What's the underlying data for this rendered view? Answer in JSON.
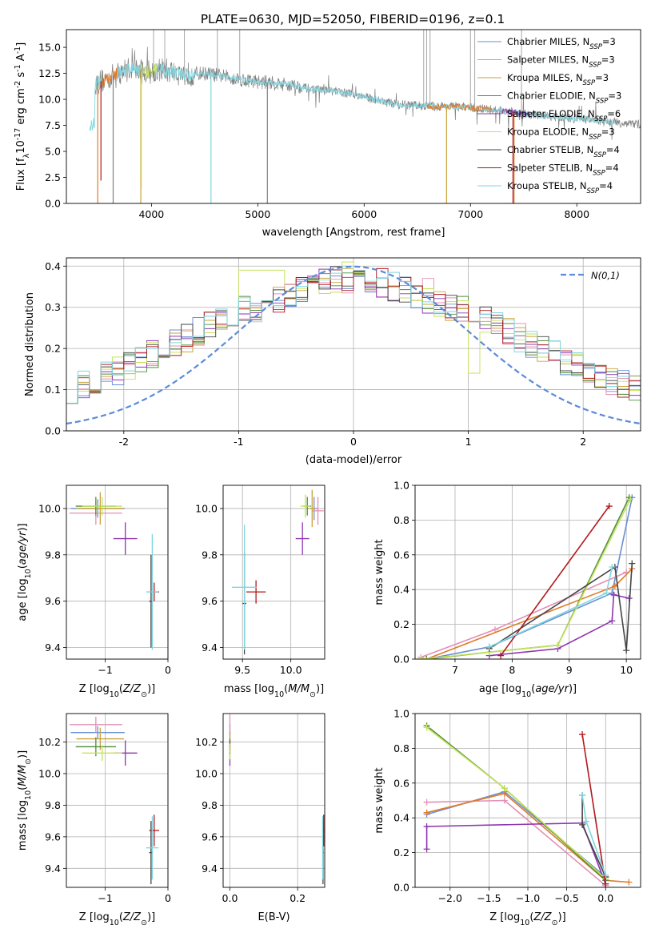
{
  "figure": {
    "title": "PLATE=0630, MJD=52050, FIBERID=0196, z=0.1"
  },
  "models": [
    {
      "name": "Chabrier MILES, N",
      "nssp": "3",
      "color": "#6a8fd6"
    },
    {
      "name": "Salpeter MILES, N",
      "nssp": "3",
      "color": "#e38fb6"
    },
    {
      "name": "Kroupa MILES, N",
      "nssp": "3",
      "color": "#c9a23a"
    },
    {
      "name": "Chabrier ELODIE, N",
      "nssp": "3",
      "color": "#4e8f3a"
    },
    {
      "name": "Salpeter ELODIE, N",
      "nssp": "6",
      "color": "#8e35b0"
    },
    {
      "name": "Kroupa ELODIE, N",
      "nssp": "3",
      "color": "#c5e25a"
    },
    {
      "name": "Chabrier STELIB, N",
      "nssp": "4",
      "color": "#454545"
    },
    {
      "name": "Salpeter STELIB, N",
      "nssp": "4",
      "color": "#b2181b"
    },
    {
      "name": "Kroupa STELIB, N",
      "nssp": "4",
      "color": "#7fd6e0"
    }
  ],
  "legend_sub": "SSP",
  "chart_data": [
    {
      "id": "spectrum",
      "type": "line",
      "xlabel": "wavelength [Angstrom, rest frame]",
      "ylabel_main": "Flux [f",
      "ylabel_tail": "10",
      "ylabel_exp": "-17",
      "ylabel_units": " erg cm",
      "ylabel_units_exp1": "-2",
      "ylabel_units_mid": " s",
      "ylabel_units_exp2": "-1",
      "ylabel_units_end": " A",
      "ylabel_units_exp3": "-1",
      "ylabel_close": "]",
      "xlim": [
        3200,
        8600
      ],
      "ylim": [
        0,
        16.7
      ],
      "xticks": [
        4000,
        5000,
        6000,
        7000,
        8000
      ],
      "yticks": [
        0.0,
        2.5,
        5.0,
        7.5,
        10.0,
        12.5,
        15.0
      ],
      "ytick_labels": [
        "0.0",
        "2.5",
        "5.0",
        "7.5",
        "10.0",
        "12.5",
        "15.0"
      ],
      "data_color": "#808080",
      "model_color": "#7fd6e0",
      "data_range": [
        3470,
        8600
      ],
      "continuum": [
        [
          3470,
          11.5
        ],
        [
          3650,
          12.3
        ],
        [
          3800,
          13.0
        ],
        [
          3950,
          12.6
        ],
        [
          4100,
          12.9
        ],
        [
          4300,
          12.4
        ],
        [
          4500,
          12.5
        ],
        [
          4700,
          12.2
        ],
        [
          4900,
          11.8
        ],
        [
          5100,
          11.6
        ],
        [
          5300,
          11.4
        ],
        [
          5500,
          11.0
        ],
        [
          5700,
          10.8
        ],
        [
          5900,
          10.5
        ],
        [
          6100,
          10.0
        ],
        [
          6300,
          9.5
        ],
        [
          6500,
          9.4
        ],
        [
          6700,
          9.3
        ],
        [
          6900,
          9.3
        ],
        [
          7100,
          9.1
        ],
        [
          7300,
          8.9
        ],
        [
          7500,
          8.6
        ],
        [
          7700,
          8.4
        ],
        [
          7900,
          8.2
        ],
        [
          8100,
          8.1
        ],
        [
          8300,
          7.8
        ],
        [
          8600,
          7.6
        ]
      ],
      "model_range": [
        3420,
        8370
      ],
      "model_segments": [
        {
          "range": [
            3420,
            3520
          ],
          "color": "#7fd6e0"
        },
        {
          "range": [
            3520,
            3680
          ],
          "color": "#e07b2a"
        },
        {
          "range": [
            3680,
            3900
          ],
          "color": "#7fd6e0"
        },
        {
          "range": [
            3900,
            4050
          ],
          "color": "#c5e25a"
        },
        {
          "range": [
            4050,
            8370
          ],
          "color": "#7fd6e0"
        },
        {
          "range": [
            6600,
            7200
          ],
          "color": "#e07b2a"
        },
        {
          "range": [
            7300,
            7560
          ],
          "color": "#8e35b0"
        }
      ],
      "absorption_spikes": [
        {
          "x": 3495,
          "y": 0.0,
          "color": "#e07b2a"
        },
        {
          "x": 3525,
          "y": 2.2,
          "color": "#b2181b"
        },
        {
          "x": 3640,
          "y": 0.0,
          "color": "#808080"
        },
        {
          "x": 3900,
          "y": 0.0,
          "color": "#c9a23a"
        },
        {
          "x": 3905,
          "y": 1.5,
          "color": "#c5e25a"
        },
        {
          "x": 4560,
          "y": 0.0,
          "color": "#7fd6e0"
        },
        {
          "x": 5090,
          "y": 0.0,
          "color": "#808080"
        },
        {
          "x": 6775,
          "y": 0.0,
          "color": "#c9a23a"
        },
        {
          "x": 7400,
          "y": 0.0,
          "color": "#b2181b"
        },
        {
          "x": 7410,
          "y": 0.0,
          "color": "#e07b2a"
        }
      ],
      "emission_spikes": [
        {
          "x": 4020,
          "y": 16.7
        },
        {
          "x": 4125,
          "y": 16.7
        },
        {
          "x": 4310,
          "y": 16.7
        },
        {
          "x": 4620,
          "y": 16.7
        },
        {
          "x": 4830,
          "y": 16.7
        },
        {
          "x": 6560,
          "y": 16.7
        },
        {
          "x": 6588,
          "y": 16.7
        },
        {
          "x": 6620,
          "y": 16.7
        },
        {
          "x": 7000,
          "y": 16.7
        },
        {
          "x": 7040,
          "y": 16.7
        },
        {
          "x": 7480,
          "y": 16.7
        }
      ]
    },
    {
      "id": "residuals",
      "type": "histogram",
      "xlabel": "(data-model)/error",
      "ylabel": "Normed distribution",
      "xlim": [
        -2.5,
        2.5
      ],
      "ylim": [
        0.0,
        0.42
      ],
      "xticks": [
        -2,
        -1,
        0,
        1,
        2
      ],
      "yticks": [
        0.0,
        0.1,
        0.2,
        0.3,
        0.4
      ],
      "ytick_labels": [
        "0.0",
        "0.1",
        "0.2",
        "0.3",
        "0.4"
      ],
      "bin_edges_start": -2.5,
      "bin_width": 0.1,
      "n_bins": 50,
      "gaussian_label": "N(0,1)",
      "gaussian_color": "#5b8bd8"
    },
    {
      "id": "age-Z",
      "type": "errorbar",
      "xlabel": "Z [log10(Z/Z⊙)]",
      "ylabel": "age [log10(age/yr)]",
      "xlim": [
        -1.62,
        0.0
      ],
      "ylim": [
        9.35,
        10.1
      ],
      "xticks": [
        -1,
        0
      ],
      "xtick_labels": [
        "−1",
        "0"
      ],
      "yticks": [
        9.4,
        9.6,
        9.8,
        10.0
      ],
      "ytick_labels": [
        "9.4",
        "9.6",
        "9.8",
        "10.0"
      ],
      "points": [
        {
          "model": 0,
          "x": -1.12,
          "y": 10.0,
          "xerr": 0.43,
          "yerr": 0.04
        },
        {
          "model": 1,
          "x": -1.15,
          "y": 9.98,
          "xerr": 0.42,
          "yerr": 0.05
        },
        {
          "model": 2,
          "x": -1.08,
          "y": 10.0,
          "xerr": 0.38,
          "yerr": 0.07
        },
        {
          "model": 3,
          "x": -1.15,
          "y": 10.01,
          "xerr": 0.32,
          "yerr": 0.04
        },
        {
          "model": 4,
          "x": -0.68,
          "y": 9.87,
          "xerr": 0.19,
          "yerr": 0.07
        },
        {
          "model": 5,
          "x": -1.05,
          "y": 10.01,
          "xerr": 0.32,
          "yerr": 0.04
        },
        {
          "model": 6,
          "x": -0.27,
          "y": 9.6,
          "xerr": 0.03,
          "yerr": 0.2
        },
        {
          "model": 7,
          "x": -0.22,
          "y": 9.64,
          "xerr": 0.08,
          "yerr": 0.04
        },
        {
          "model": 8,
          "x": -0.25,
          "y": 9.64,
          "xerr": 0.1,
          "yerr": 0.25
        }
      ]
    },
    {
      "id": "age-mass",
      "type": "errorbar",
      "xlabel": "mass [log10(M/M⊙)]",
      "xlim": [
        9.3,
        10.35
      ],
      "ylim": [
        9.35,
        10.1
      ],
      "xticks": [
        9.5,
        10.0
      ],
      "xtick_labels": [
        "9.5",
        "10.0"
      ],
      "yticks": [
        9.4,
        9.6,
        9.8,
        10.0
      ],
      "ytick_labels": [
        "9.4",
        "9.6",
        "9.8",
        "10.0"
      ],
      "points": [
        {
          "model": 0,
          "x": 10.24,
          "y": 10.0,
          "xerr": 0.04,
          "yerr": 0.05
        },
        {
          "model": 1,
          "x": 10.28,
          "y": 9.99,
          "xerr": 0.06,
          "yerr": 0.06
        },
        {
          "model": 2,
          "x": 10.22,
          "y": 10.0,
          "xerr": 0.04,
          "yerr": 0.08
        },
        {
          "model": 3,
          "x": 10.17,
          "y": 10.01,
          "xerr": 0.04,
          "yerr": 0.04
        },
        {
          "model": 4,
          "x": 10.12,
          "y": 9.87,
          "xerr": 0.07,
          "yerr": 0.07
        },
        {
          "model": 5,
          "x": 10.15,
          "y": 10.01,
          "xerr": 0.05,
          "yerr": 0.05
        },
        {
          "model": 6,
          "x": 9.52,
          "y": 9.59,
          "xerr": 0.02,
          "yerr": 0.22
        },
        {
          "model": 7,
          "x": 9.64,
          "y": 9.64,
          "xerr": 0.1,
          "yerr": 0.05
        },
        {
          "model": 8,
          "x": 9.52,
          "y": 9.66,
          "xerr": 0.13,
          "yerr": 0.27
        }
      ]
    },
    {
      "id": "mw-age",
      "type": "line",
      "xlabel": "age [log10(age/yr)]",
      "ylabel": "mass weight",
      "xlim": [
        6.3,
        10.25
      ],
      "ylim": [
        0.0,
        1.0
      ],
      "xticks": [
        7,
        8,
        9,
        10
      ],
      "xtick_labels": [
        "7",
        "8",
        "9",
        "10"
      ],
      "yticks": [
        0.0,
        0.2,
        0.4,
        0.6,
        0.8,
        1.0
      ],
      "ytick_labels": [
        "0.0",
        "0.2",
        "0.4",
        "0.6",
        "0.8",
        "1.0"
      ],
      "series": [
        {
          "model": 0,
          "x": [
            6.5,
            7.6,
            9.75,
            10.1
          ],
          "y": [
            0.0,
            0.07,
            0.38,
            0.93
          ]
        },
        {
          "model": 1,
          "x": [
            6.4,
            7.7,
            10.0
          ],
          "y": [
            0.01,
            0.17,
            0.5
          ]
        },
        {
          "model": 2,
          "x": [
            6.5,
            9.8,
            10.1
          ],
          "y": [
            0.0,
            0.42,
            0.52
          ]
        },
        {
          "model": 3,
          "x": [
            6.5,
            7.6,
            8.8,
            10.05
          ],
          "y": [
            0.0,
            0.04,
            0.08,
            0.93
          ]
        },
        {
          "model": 4,
          "x": [
            7.6,
            8.8,
            9.75,
            9.78,
            10.05
          ],
          "y": [
            0.02,
            0.06,
            0.22,
            0.37,
            0.35
          ]
        },
        {
          "model": 5,
          "x": [
            6.4,
            7.6,
            8.8,
            10.07
          ],
          "y": [
            0.0,
            0.04,
            0.08,
            0.92
          ]
        },
        {
          "model": 6,
          "x": [
            7.6,
            9.8,
            10.0,
            10.1
          ],
          "y": [
            0.06,
            0.53,
            0.05,
            0.55
          ]
        },
        {
          "model": 7,
          "x": [
            7.8,
            9.7
          ],
          "y": [
            0.02,
            0.88
          ]
        },
        {
          "model": 8,
          "x": [
            7.6,
            9.65,
            9.75
          ],
          "y": [
            0.07,
            0.38,
            0.53
          ]
        }
      ]
    },
    {
      "id": "mass-Z",
      "type": "errorbar",
      "xlabel": "Z [log10(Z/Z⊙)]",
      "ylabel": "mass [log10(M/M⊙)]",
      "xlim": [
        -1.62,
        0.0
      ],
      "ylim": [
        9.28,
        10.38
      ],
      "xticks": [
        -1,
        0
      ],
      "xtick_labels": [
        "−1",
        "0"
      ],
      "yticks": [
        9.4,
        9.6,
        9.8,
        10.0,
        10.2
      ],
      "ytick_labels": [
        "9.4",
        "9.6",
        "9.8",
        "10.0",
        "10.2"
      ],
      "points": [
        {
          "model": 0,
          "x": -1.12,
          "y": 10.26,
          "xerr": 0.43,
          "yerr": 0.04
        },
        {
          "model": 1,
          "x": -1.15,
          "y": 10.31,
          "xerr": 0.42,
          "yerr": 0.05
        },
        {
          "model": 2,
          "x": -1.08,
          "y": 10.22,
          "xerr": 0.38,
          "yerr": 0.07
        },
        {
          "model": 3,
          "x": -1.15,
          "y": 10.17,
          "xerr": 0.32,
          "yerr": 0.06
        },
        {
          "model": 4,
          "x": -0.68,
          "y": 10.13,
          "xerr": 0.19,
          "yerr": 0.08
        },
        {
          "model": 5,
          "x": -1.05,
          "y": 10.13,
          "xerr": 0.32,
          "yerr": 0.05
        },
        {
          "model": 6,
          "x": -0.27,
          "y": 9.5,
          "xerr": 0.03,
          "yerr": 0.2
        },
        {
          "model": 7,
          "x": -0.22,
          "y": 9.64,
          "xerr": 0.08,
          "yerr": 0.1
        },
        {
          "model": 8,
          "x": -0.25,
          "y": 9.53,
          "xerr": 0.1,
          "yerr": 0.2
        }
      ]
    },
    {
      "id": "mass-ebv",
      "type": "errorbar",
      "xlabel": "E(B-V)",
      "xlim": [
        -0.02,
        0.28
      ],
      "ylim": [
        9.28,
        10.38
      ],
      "xticks": [
        0.0,
        0.2
      ],
      "xtick_labels": [
        "0.0",
        "0.2"
      ],
      "yticks": [
        9.4,
        9.6,
        9.8,
        10.0,
        10.2
      ],
      "ytick_labels": [
        "9.4",
        "9.6",
        "9.8",
        "10.0",
        "10.2"
      ],
      "points": [
        {
          "model": 0,
          "x": 0.0,
          "y": 10.26,
          "xerr": 0.002,
          "yerr": 0.05
        },
        {
          "model": 1,
          "x": 0.0,
          "y": 10.31,
          "xerr": 0.002,
          "yerr": 0.06
        },
        {
          "model": 2,
          "x": 0.0,
          "y": 10.2,
          "xerr": 0.002,
          "yerr": 0.06
        },
        {
          "model": 3,
          "x": 0.0,
          "y": 10.17,
          "xerr": 0.002,
          "yerr": 0.05
        },
        {
          "model": 4,
          "x": 0.0,
          "y": 10.13,
          "xerr": 0.002,
          "yerr": 0.08
        },
        {
          "model": 5,
          "x": 0.0,
          "y": 10.14,
          "xerr": 0.002,
          "yerr": 0.05
        },
        {
          "model": 6,
          "x": 0.275,
          "y": 9.5,
          "xerr": 0.002,
          "yerr": 0.2
        },
        {
          "model": 7,
          "x": 0.277,
          "y": 9.64,
          "xerr": 0.003,
          "yerr": 0.1
        },
        {
          "model": 8,
          "x": 0.274,
          "y": 9.53,
          "xerr": 0.002,
          "yerr": 0.2
        }
      ]
    },
    {
      "id": "mw-Z",
      "type": "line",
      "xlabel": "Z [log10(Z/Z⊙)]",
      "ylabel": "mass weight",
      "xlim": [
        -2.45,
        0.45
      ],
      "ylim": [
        0.0,
        1.0
      ],
      "xticks": [
        -2.0,
        -1.5,
        -1.0,
        -0.5,
        0.0
      ],
      "xtick_labels": [
        "−2.0",
        "−1.5",
        "−1.0",
        "−0.5",
        "0.0"
      ],
      "yticks": [
        0.0,
        0.2,
        0.4,
        0.6,
        0.8,
        1.0
      ],
      "ytick_labels": [
        "0.0",
        "0.2",
        "0.4",
        "0.6",
        "0.8",
        "1.0"
      ],
      "series": [
        {
          "model": 0,
          "x": [
            -2.3,
            -1.3,
            0.0,
            0.0
          ],
          "y": [
            0.42,
            0.55,
            0.06,
            0.01
          ]
        },
        {
          "model": 1,
          "x": [
            -2.3,
            -1.3,
            0.0
          ],
          "y": [
            0.49,
            0.5,
            0.01
          ]
        },
        {
          "model": 2,
          "x": [
            -2.3,
            -1.3,
            0.0,
            0.3
          ],
          "y": [
            0.43,
            0.54,
            0.04,
            0.03
          ]
        },
        {
          "model": 3,
          "x": [
            -2.3,
            -1.3,
            0.0
          ],
          "y": [
            0.93,
            0.57,
            0.04
          ]
        },
        {
          "model": 4,
          "x": [
            -2.3,
            -2.3,
            -0.3,
            0.0
          ],
          "y": [
            0.22,
            0.35,
            0.37,
            0.02
          ]
        },
        {
          "model": 5,
          "x": [
            -2.3,
            -1.3,
            0.0
          ],
          "y": [
            0.92,
            0.57,
            0.05
          ]
        },
        {
          "model": 6,
          "x": [
            -0.3,
            -0.3,
            0.0
          ],
          "y": [
            0.53,
            0.36,
            0.06
          ]
        },
        {
          "model": 7,
          "x": [
            -0.3,
            0.0
          ],
          "y": [
            0.88,
            0.02
          ]
        },
        {
          "model": 8,
          "x": [
            -0.3,
            -0.25,
            0.0
          ],
          "y": [
            0.53,
            0.38,
            0.07
          ]
        }
      ]
    }
  ]
}
